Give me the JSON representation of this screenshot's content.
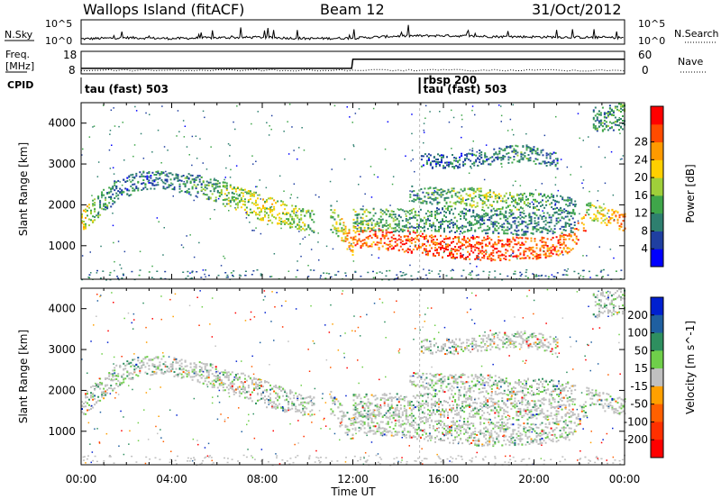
{
  "header": {
    "station": "Wallops Island (fitACF)",
    "beam": "Beam 12",
    "date": "31/Oct/2012"
  },
  "noise_panel": {
    "left_label": "N.Sky",
    "right_label": "N.Search",
    "left_ticks": [
      "10^5",
      "10^0"
    ],
    "right_ticks": [
      "10^5",
      "10^0"
    ]
  },
  "freq_panel": {
    "left_label": "Freq.",
    "left_unit": "[MHz]",
    "right_label": "Nave",
    "left_ticks": [
      "18",
      "8"
    ],
    "right_ticks": [
      "60",
      "0"
    ],
    "cpid_label": "CPID"
  },
  "cpid_events": [
    {
      "time_h": 0.0,
      "labels": [
        "tau (fast) 503"
      ]
    },
    {
      "time_h": 14.95,
      "labels": [
        "rbsp 200",
        "tau (fast) 503"
      ]
    }
  ],
  "chart_data": [
    {
      "type": "line",
      "title": "N.Sky / N.Search",
      "x": [
        0,
        2,
        4,
        6,
        8,
        10,
        12,
        14,
        16,
        18,
        20,
        22,
        24
      ],
      "series": [
        {
          "name": "N.Sky",
          "values": [
            0.6,
            0.9,
            0.7,
            0.9,
            1.0,
            0.7,
            0.8,
            1.3,
            1.4,
            1.2,
            1.1,
            1.0,
            0.9
          ]
        }
      ],
      "ylim": [
        0,
        5
      ]
    },
    {
      "type": "line",
      "title": "Freq. / Nave",
      "x": [
        0,
        11.95,
        12.0,
        24
      ],
      "series": [
        {
          "name": "Freq. [MHz]",
          "values": [
            10.2,
            10.2,
            14.6,
            14.6
          ]
        },
        {
          "name": "Nave",
          "values": [
            3,
            3,
            3,
            3
          ]
        }
      ],
      "ylim": [
        8,
        18
      ]
    },
    {
      "type": "heatmap",
      "title": "Power",
      "xlabel": "Time UT",
      "ylabel": "Slant Range [km]",
      "xlim": [
        0,
        24
      ],
      "ylim": [
        180,
        4500
      ],
      "x_ticks": [
        "00:00",
        "04:00",
        "08:00",
        "12:00",
        "16:00",
        "20:00",
        "00:00"
      ],
      "y_ticks": [
        1000,
        2000,
        3000,
        4000
      ],
      "colorbar": {
        "label": "Power [dB]",
        "ticks": [
          4,
          8,
          12,
          16,
          20,
          24,
          28
        ],
        "colors": [
          "#0000ff",
          "#1f3fa0",
          "#2e7f6f",
          "#3fa64a",
          "#9fcf3a",
          "#ffd000",
          "#ff9a00",
          "#ff4b00",
          "#ff0000"
        ]
      },
      "echo_bands": [
        {
          "t": [
            0.0,
            0.7,
            1.5,
            2.5,
            3.5,
            5.0,
            6.5,
            8.0,
            9.5,
            10.3
          ],
          "r": [
            1600,
            2000,
            2350,
            2600,
            2650,
            2500,
            2250,
            1950,
            1700,
            1600
          ],
          "w": [
            250,
            300,
            280,
            240,
            220,
            260,
            300,
            320,
            280,
            260
          ],
          "p": [
            20,
            12,
            8,
            8,
            8,
            10,
            14,
            18,
            16,
            12
          ]
        },
        {
          "t": [
            11.0,
            11.6,
            12.0
          ],
          "r": [
            1700,
            1300,
            1000
          ],
          "w": [
            300,
            300,
            250
          ],
          "p": [
            12,
            20,
            24
          ]
        },
        {
          "t": [
            12.0,
            14.0,
            16.0,
            18.0,
            20.0,
            21.5,
            22.3
          ],
          "r": [
            1250,
            1150,
            1000,
            950,
            950,
            1050,
            1650
          ],
          "w": [
            260,
            260,
            280,
            300,
            260,
            260,
            220
          ],
          "p": [
            24,
            27,
            28,
            28,
            27,
            24,
            26
          ]
        },
        {
          "t": [
            12.0,
            14.0,
            16.0,
            18.0,
            20.0,
            21.8
          ],
          "r": [
            1650,
            1650,
            1650,
            1600,
            1550,
            1600
          ],
          "w": [
            280,
            300,
            300,
            300,
            280,
            250
          ],
          "p": [
            14,
            12,
            10,
            9,
            9,
            10
          ]
        },
        {
          "t": [
            14.5,
            16.0,
            17.5,
            19.0,
            20.5,
            21.8
          ],
          "r": [
            2300,
            2200,
            2200,
            2100,
            2100,
            2000
          ],
          "w": [
            200,
            220,
            240,
            220,
            200,
            200
          ],
          "p": [
            8,
            12,
            16,
            14,
            10,
            10
          ]
        },
        {
          "t": [
            15.0,
            16.5,
            18.0,
            19.5,
            21.0
          ],
          "r": [
            3100,
            3100,
            3200,
            3300,
            3100
          ],
          "w": [
            180,
            200,
            200,
            220,
            200
          ],
          "p": [
            6,
            8,
            8,
            10,
            8
          ]
        },
        {
          "t": [
            22.3,
            23.0,
            24.0
          ],
          "r": [
            1900,
            1750,
            1600
          ],
          "w": [
            200,
            220,
            220
          ],
          "p": [
            14,
            20,
            26
          ]
        },
        {
          "t": [
            22.6,
            24.0
          ],
          "r": [
            4100,
            4200
          ],
          "w": [
            300,
            350
          ],
          "p": [
            10,
            12
          ]
        }
      ]
    },
    {
      "type": "heatmap",
      "title": "Velocity",
      "xlabel": "Time UT",
      "ylabel": "Slant Range [km]",
      "xlim": [
        0,
        24
      ],
      "ylim": [
        180,
        4500
      ],
      "x_ticks": [
        "00:00",
        "04:00",
        "08:00",
        "12:00",
        "16:00",
        "20:00",
        "00:00"
      ],
      "y_ticks": [
        1000,
        2000,
        3000,
        4000
      ],
      "colorbar": {
        "label": "Velocity [m s^-1]",
        "ticks": [
          "200",
          "100",
          "50",
          "15",
          "-15",
          "-50",
          "-100",
          "-200"
        ],
        "colors": [
          "#0020d0",
          "#1f5fa0",
          "#2e8f5f",
          "#6fcf4a",
          "#c0c0c0",
          "#ffa000",
          "#ff6000",
          "#ff3000",
          "#ff0000"
        ]
      }
    }
  ]
}
